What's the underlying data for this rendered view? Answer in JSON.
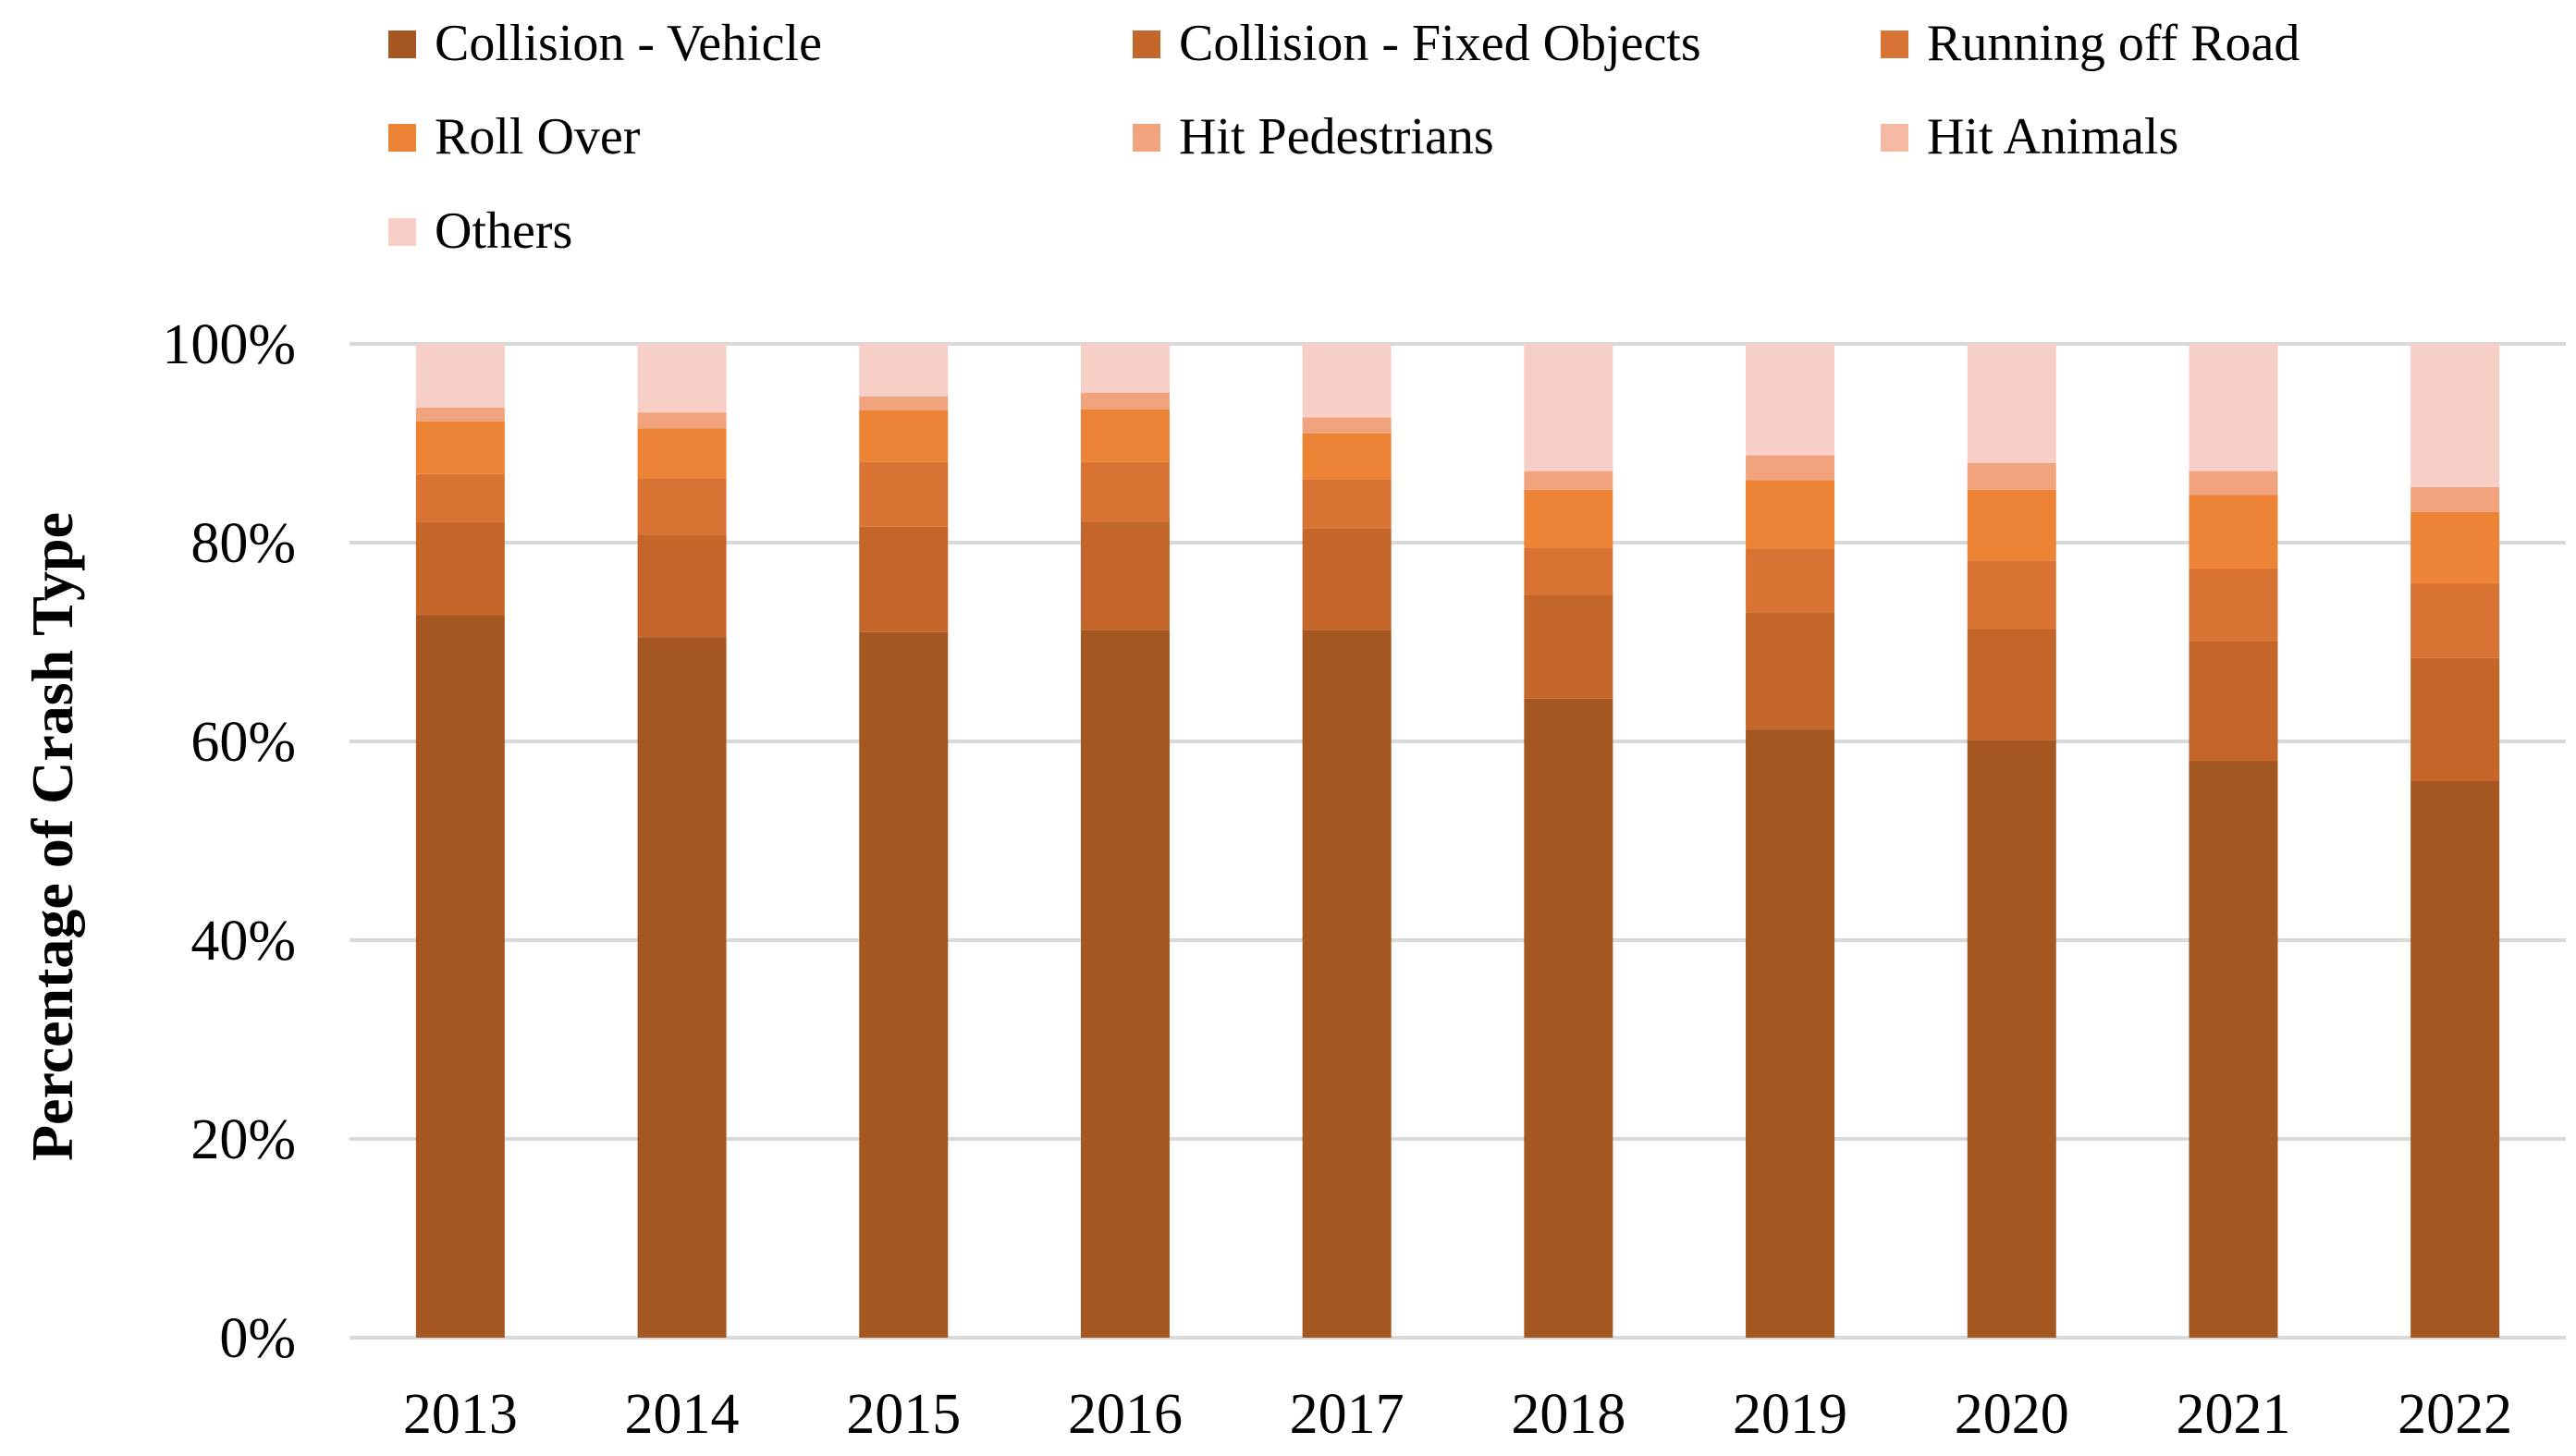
{
  "chart_data": {
    "type": "bar",
    "stacked": true,
    "percent_stacked": true,
    "ylabel": "Percentage of Crash Type",
    "xlabel": "",
    "ylim": [
      0,
      100
    ],
    "y_ticks": [
      "0%",
      "20%",
      "40%",
      "60%",
      "80%",
      "100%"
    ],
    "grid": true,
    "legend_position": "top",
    "categories": [
      "2013",
      "2014",
      "2015",
      "2016",
      "2017",
      "2018",
      "2019",
      "2020",
      "2021",
      "2022"
    ],
    "series": [
      {
        "name": "Collision - Vehicle",
        "color": "#a55722",
        "values": [
          72.7,
          70.5,
          71.0,
          71.2,
          71.2,
          64.3,
          61.2,
          60.1,
          58.0,
          56.0
        ]
      },
      {
        "name": "Collision - Fixed Objects",
        "color": "#c4652a",
        "values": [
          9.3,
          10.3,
          10.6,
          10.9,
          10.2,
          10.4,
          11.8,
          11.2,
          12.1,
          12.4
        ]
      },
      {
        "name": "Running off Road",
        "color": "#d87333",
        "values": [
          4.9,
          5.7,
          6.5,
          6.0,
          5.0,
          4.8,
          6.4,
          6.9,
          7.3,
          7.5
        ]
      },
      {
        "name": "Roll Over",
        "color": "#ed8335",
        "values": [
          5.3,
          5.0,
          5.2,
          5.3,
          4.6,
          5.8,
          6.9,
          7.1,
          7.4,
          7.2
        ]
      },
      {
        "name": "Hit Pedestrians",
        "color": "#f0a37c",
        "values": [
          1.4,
          1.6,
          1.4,
          1.7,
          1.6,
          1.9,
          2.5,
          2.7,
          2.4,
          2.5
        ]
      },
      {
        "name": "Hit Animals",
        "color": "#f5b8a3",
        "values": [
          0.0,
          0.0,
          0.0,
          0.0,
          0.0,
          0.0,
          0.0,
          0.0,
          0.0,
          0.0
        ]
      },
      {
        "name": "Others",
        "color": "#f8cfc6",
        "values": [
          6.4,
          6.9,
          5.3,
          4.9,
          7.4,
          12.8,
          11.2,
          12.0,
          12.8,
          14.4
        ]
      }
    ]
  }
}
